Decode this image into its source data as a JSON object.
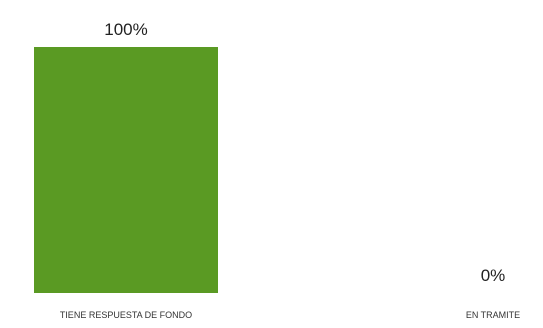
{
  "chart_data": {
    "type": "bar",
    "categories": [
      "TIENE RESPUESTA DE FONDO",
      "EN TRAMITE"
    ],
    "values": [
      100,
      0
    ],
    "data_labels": [
      "100%",
      "0%"
    ],
    "ylim": [
      0,
      100
    ],
    "grid": false,
    "colors": [
      "#5a9a23",
      "#5a9a23"
    ]
  }
}
